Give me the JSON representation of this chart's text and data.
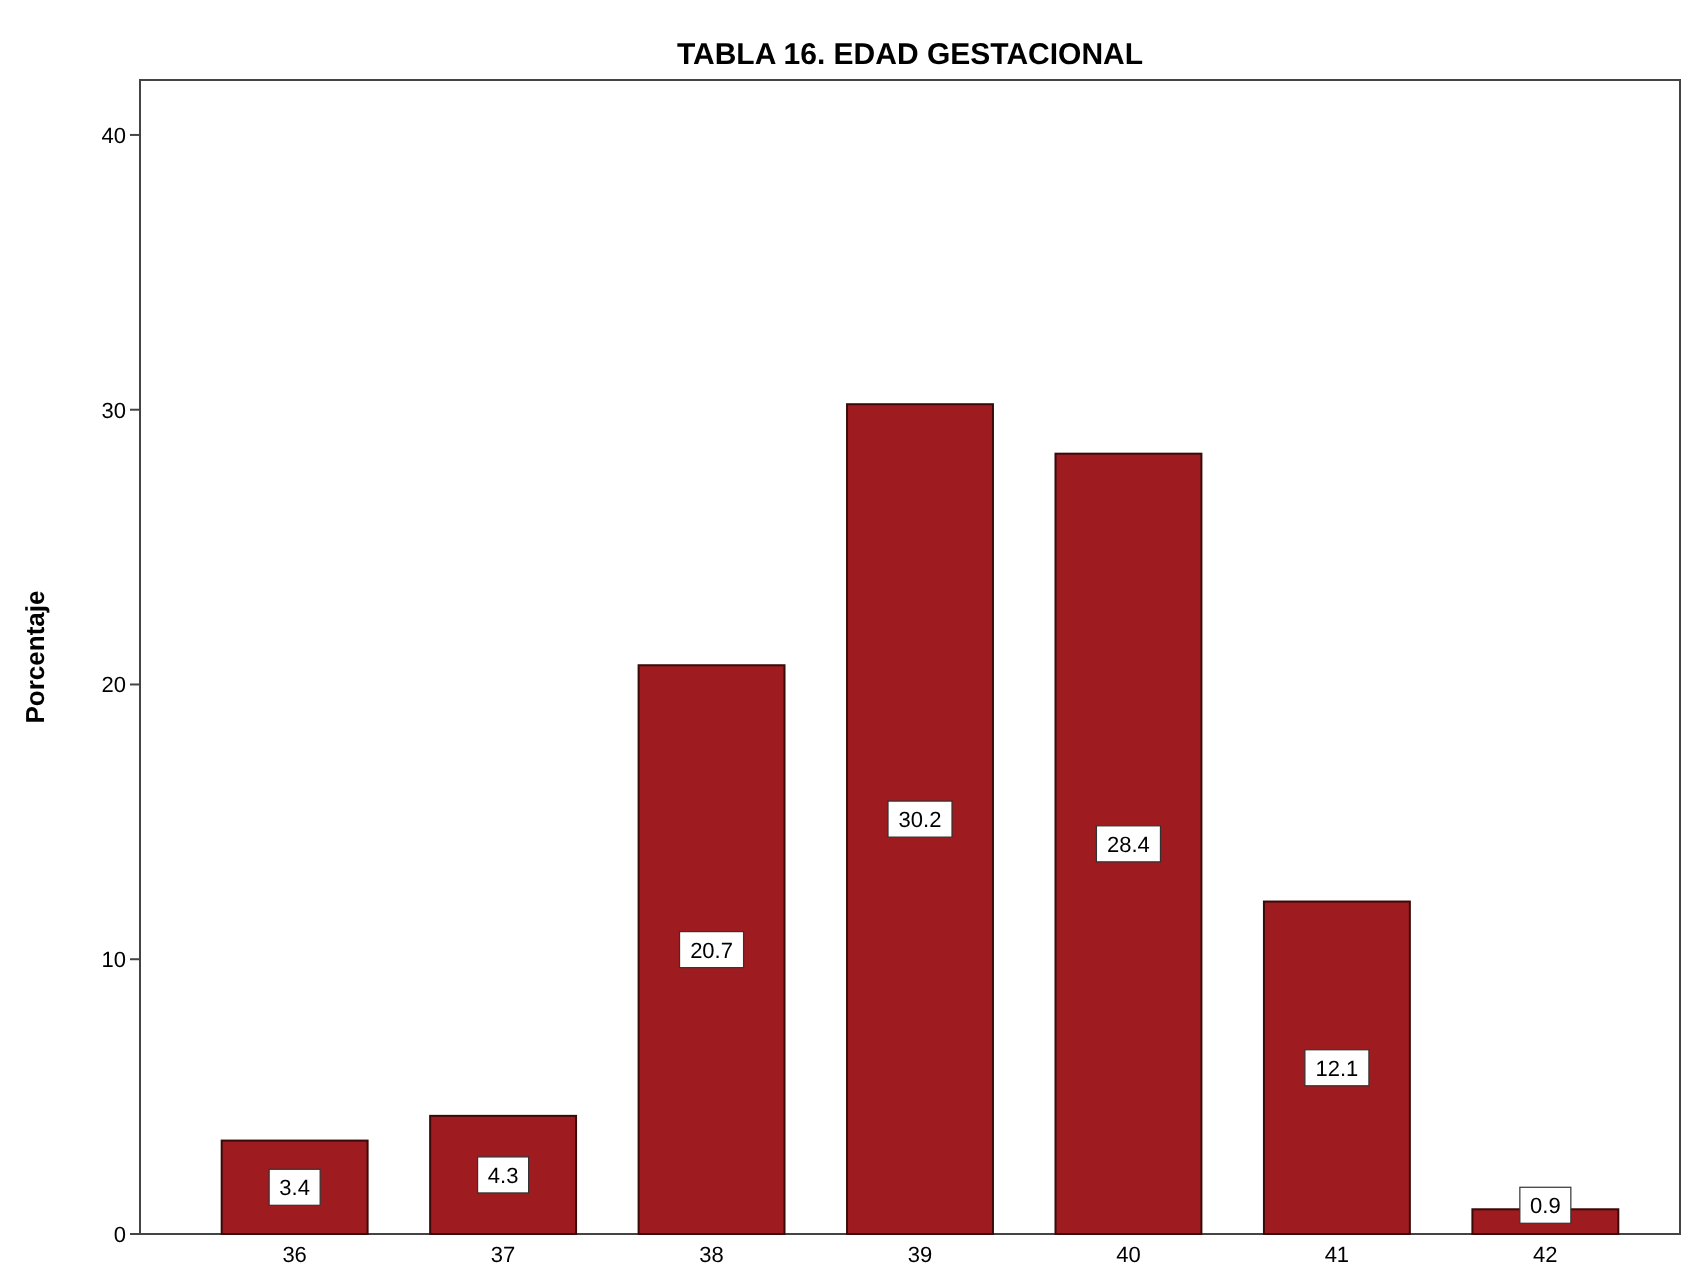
{
  "chart_data": {
    "type": "bar",
    "title": "TABLA 16. EDAD GESTACIONAL",
    "ylabel": "Porcentaje",
    "categories": [
      "36",
      "37",
      "38",
      "39",
      "40",
      "41",
      "42"
    ],
    "values": [
      3.4,
      4.3,
      20.7,
      30.2,
      28.4,
      12.1,
      0.9
    ],
    "color": "#9e1b1f",
    "ylim": [
      0,
      42
    ],
    "yticks": [
      0,
      10,
      20,
      30,
      40
    ],
    "data_labels": true,
    "grid": false
  }
}
